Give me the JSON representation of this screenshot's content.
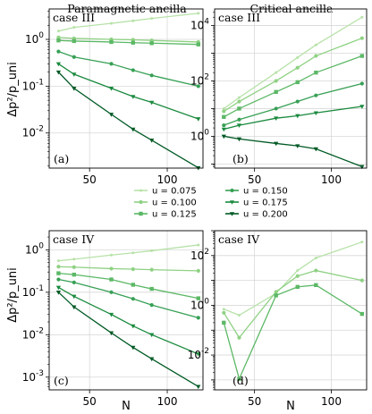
{
  "column_titles": [
    "Paramagnetic ancilla",
    "Critical ancilla"
  ],
  "y_label": "Δp²/p_uni",
  "x_label": "N",
  "legend": [
    "u = 0.075",
    "u = 0.100",
    "u = 0.125",
    "u = 0.150",
    "u = 0.175",
    "u = 0.200"
  ],
  "colors": [
    "#b7e2a8",
    "#8fd183",
    "#5cb866",
    "#37a055",
    "#1a8a3e",
    "#005a25"
  ],
  "chart_data": [
    {
      "type": "line",
      "panel": "(a)",
      "case": "case III",
      "log_y": true,
      "xlim": [
        24,
        123
      ],
      "ylim_log10": [
        -2.75,
        0.65
      ],
      "xticks": [
        50,
        100
      ],
      "yticks": [
        "10^0",
        "10^-1",
        "10^-2"
      ],
      "x": [
        30,
        40,
        64,
        78,
        90,
        120
      ],
      "series": [
        {
          "name": "u = 0.075",
          "values": [
            1.5,
            1.8,
            2.2,
            2.5,
            2.8,
            3.6
          ]
        },
        {
          "name": "u = 0.100",
          "values": [
            1.1,
            1.05,
            1.0,
            0.98,
            0.95,
            0.88
          ]
        },
        {
          "name": "u = 0.125",
          "values": [
            0.95,
            0.92,
            0.88,
            0.85,
            0.83,
            0.78
          ]
        },
        {
          "name": "u = 0.150",
          "values": [
            0.55,
            0.42,
            0.3,
            0.22,
            0.17,
            0.1
          ]
        },
        {
          "name": "u = 0.175",
          "values": [
            0.3,
            0.18,
            0.09,
            0.06,
            0.045,
            0.02
          ]
        },
        {
          "name": "u = 0.200",
          "values": [
            0.2,
            0.09,
            0.025,
            0.012,
            0.007,
            0.0018
          ]
        }
      ]
    },
    {
      "type": "line",
      "panel": "(b)",
      "case": "case III",
      "log_y": true,
      "xlim": [
        24,
        123
      ],
      "ylim_log10": [
        -1.15,
        4.6
      ],
      "xticks": [
        50,
        100
      ],
      "yticks": [
        "10^4",
        "10^2",
        "10^0"
      ],
      "x": [
        30,
        40,
        64,
        78,
        90,
        120
      ],
      "series": [
        {
          "name": "u = 0.075",
          "values": [
            10,
            25,
            200,
            700,
            2000,
            20000
          ]
        },
        {
          "name": "u = 0.100",
          "values": [
            8,
            18,
            100,
            300,
            800,
            3500
          ]
        },
        {
          "name": "u = 0.125",
          "values": [
            5,
            10,
            40,
            90,
            200,
            800
          ]
        },
        {
          "name": "u = 0.150",
          "values": [
            2.5,
            4,
            10,
            18,
            30,
            80
          ]
        },
        {
          "name": "u = 0.175",
          "values": [
            1.8,
            2.5,
            4.5,
            5.5,
            7,
            12
          ]
        },
        {
          "name": "u = 0.200",
          "values": [
            1.0,
            0.8,
            0.55,
            0.45,
            0.35,
            0.08
          ]
        }
      ]
    },
    {
      "type": "line",
      "panel": "(c)",
      "case": "case IV",
      "log_y": true,
      "xlim": [
        24,
        123
      ],
      "ylim_log10": [
        -3.3,
        0.45
      ],
      "xticks": [
        50,
        100
      ],
      "yticks": [
        "10^0",
        "10^-1",
        "10^-2",
        "10^-3"
      ],
      "x": [
        30,
        40,
        64,
        78,
        90,
        120
      ],
      "series": [
        {
          "name": "u = 0.075",
          "values": [
            0.55,
            0.6,
            0.75,
            0.85,
            0.95,
            1.3
          ]
        },
        {
          "name": "u = 0.100",
          "values": [
            0.4,
            0.39,
            0.36,
            0.35,
            0.34,
            0.32
          ]
        },
        {
          "name": "u = 0.125",
          "values": [
            0.28,
            0.26,
            0.2,
            0.15,
            0.12,
            0.072
          ]
        },
        {
          "name": "u = 0.150",
          "values": [
            0.2,
            0.17,
            0.1,
            0.07,
            0.05,
            0.025
          ]
        },
        {
          "name": "u = 0.175",
          "values": [
            0.13,
            0.08,
            0.03,
            0.016,
            0.01,
            0.0035
          ]
        },
        {
          "name": "u = 0.200",
          "values": [
            0.1,
            0.045,
            0.011,
            0.005,
            0.0027,
            0.0006
          ]
        }
      ]
    },
    {
      "type": "line",
      "panel": "(d)",
      "case": "case IV",
      "log_y": true,
      "xlim": [
        24,
        123
      ],
      "ylim_log10": [
        -3.4,
        3.0
      ],
      "xticks": [
        50,
        100
      ],
      "yticks": [
        "10^2",
        "10^0",
        "10^-2"
      ],
      "x": [
        30,
        40,
        64,
        78,
        90,
        120
      ],
      "series": [
        {
          "name": "u = 0.075",
          "values": [
            0.7,
            0.4,
            3,
            25,
            80,
            350
          ]
        },
        {
          "name": "u = 0.100",
          "values": [
            0.5,
            0.05,
            3.5,
            15,
            25,
            10
          ]
        },
        {
          "name": "u = 0.125",
          "values": [
            0.2,
            0.0011,
            2.5,
            5.5,
            6.5,
            0.45
          ]
        }
      ]
    }
  ]
}
